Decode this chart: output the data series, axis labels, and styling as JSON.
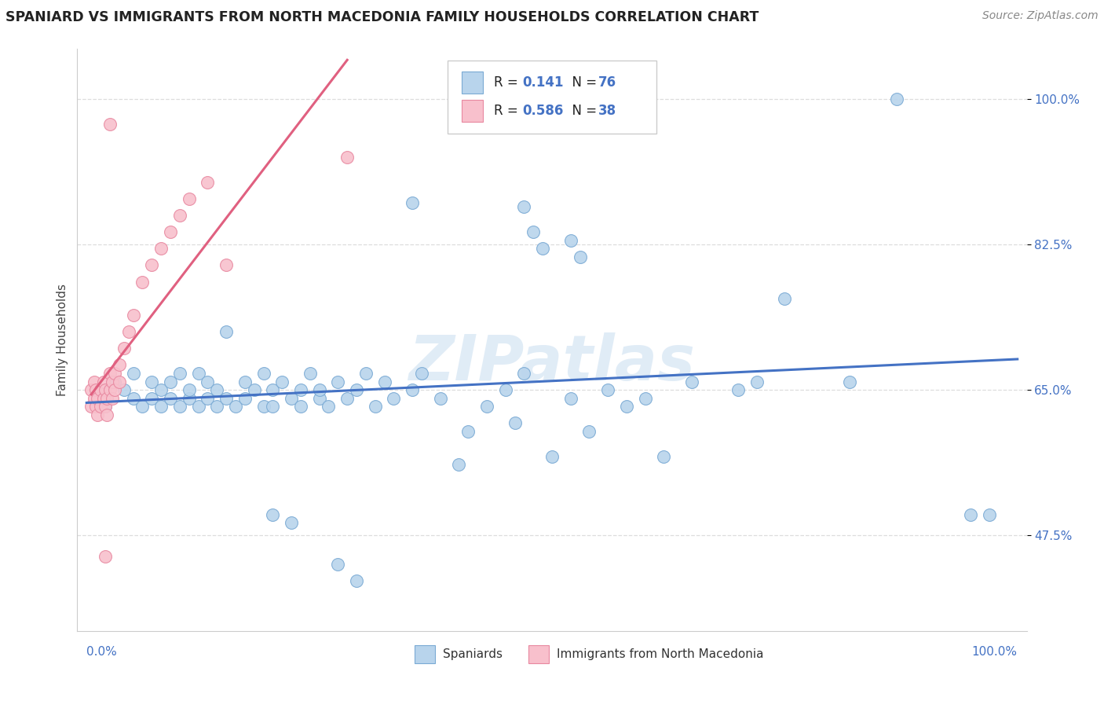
{
  "title": "SPANIARD VS IMMIGRANTS FROM NORTH MACEDONIA FAMILY HOUSEHOLDS CORRELATION CHART",
  "source": "Source: ZipAtlas.com",
  "ylabel": "Family Households",
  "ytick_values": [
    0.475,
    0.65,
    0.825,
    1.0
  ],
  "ytick_labels": [
    "47.5%",
    "65.0%",
    "82.5%",
    "100.0%"
  ],
  "xlim": [
    0.0,
    1.0
  ],
  "ylim": [
    0.36,
    1.06
  ],
  "spaniard_color": "#b8d4ec",
  "spaniard_edge": "#7aaad4",
  "macedonia_color": "#f8c0cc",
  "macedonia_edge": "#e888a0",
  "regression_blue": "#4472c4",
  "regression_pink": "#e06080",
  "watermark": "ZIPatlas",
  "title_color": "#222222",
  "source_color": "#888888",
  "tick_color": "#4472c4",
  "grid_color": "#dddddd",
  "legend_text_color": "#222222",
  "legend_value_color": "#4472c4"
}
